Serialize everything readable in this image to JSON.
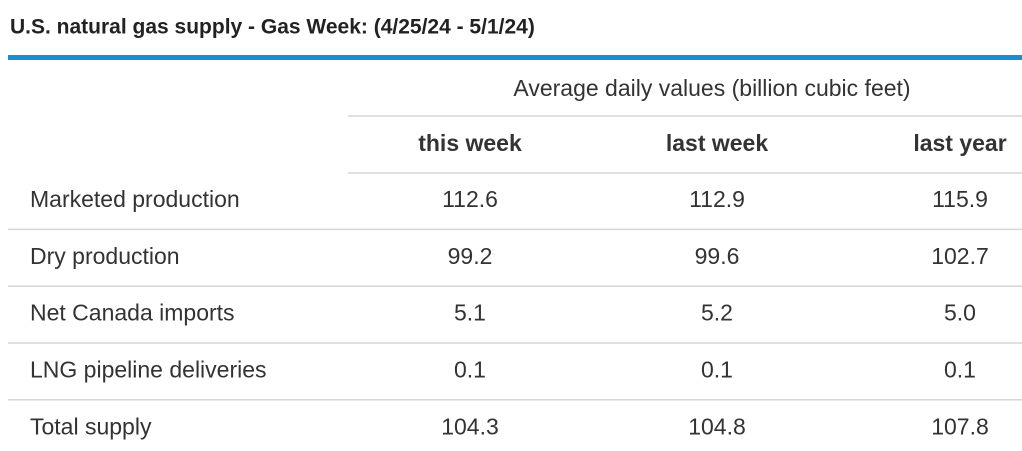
{
  "header": {
    "title": "U.S. natural gas supply - Gas Week: (4/25/24 - 5/1/24)"
  },
  "table": {
    "group_header": "Average daily values (billion cubic feet)",
    "columns": [
      "this week",
      "last week",
      "last year"
    ],
    "rows": [
      [
        "Marketed production",
        "112.6",
        "112.9",
        "115.9"
      ],
      [
        "Dry production",
        "99.2",
        "99.6",
        "102.7"
      ],
      [
        "Net Canada imports",
        "5.1",
        "5.2",
        "5.0"
      ],
      [
        "LNG pipeline deliveries",
        "0.1",
        "0.1",
        "0.1"
      ],
      [
        "Total supply",
        "104.3",
        "104.8",
        "107.8"
      ]
    ]
  }
}
